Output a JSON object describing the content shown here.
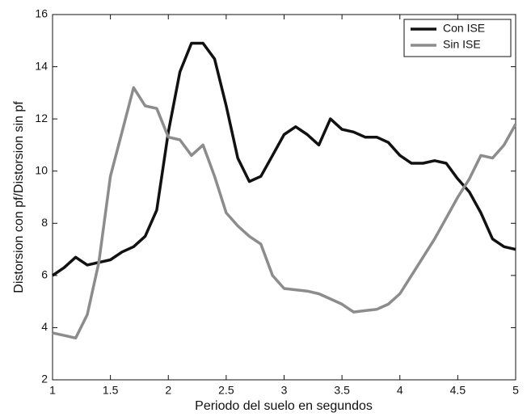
{
  "chart_data": {
    "type": "line",
    "xlabel": "Periodo del suelo en segundos",
    "ylabel": "Distorsion con pf/Distorsion sin pf",
    "x": [
      1.0,
      1.1,
      1.2,
      1.3,
      1.4,
      1.5,
      1.6,
      1.7,
      1.8,
      1.9,
      2.0,
      2.1,
      2.2,
      2.3,
      2.4,
      2.5,
      2.6,
      2.7,
      2.8,
      2.9,
      3.0,
      3.1,
      3.2,
      3.3,
      3.4,
      3.5,
      3.6,
      3.7,
      3.8,
      3.9,
      4.0,
      4.1,
      4.2,
      4.3,
      4.4,
      4.5,
      4.6,
      4.7,
      4.8,
      4.9,
      5.0
    ],
    "series": [
      {
        "name": "Con ISE",
        "color": "#111111",
        "values": [
          6.0,
          6.3,
          6.7,
          6.4,
          6.5,
          6.6,
          6.9,
          7.1,
          7.5,
          8.5,
          11.5,
          13.8,
          14.9,
          14.9,
          14.3,
          12.5,
          10.5,
          9.6,
          9.8,
          10.6,
          11.4,
          11.7,
          11.4,
          11.0,
          12.0,
          11.6,
          11.5,
          11.3,
          11.3,
          11.1,
          10.6,
          10.3,
          10.3,
          10.4,
          10.3,
          9.7,
          9.2,
          8.4,
          7.4,
          7.1,
          7.0
        ]
      },
      {
        "name": "Sin ISE",
        "color": "#8c8c8c",
        "values": [
          3.8,
          3.7,
          3.6,
          4.5,
          6.5,
          9.8,
          11.5,
          13.2,
          12.5,
          12.4,
          11.3,
          11.2,
          10.6,
          11.0,
          9.8,
          8.4,
          7.9,
          7.5,
          7.2,
          6.0,
          5.5,
          5.45,
          5.4,
          5.3,
          5.1,
          4.9,
          4.6,
          4.65,
          4.7,
          4.9,
          5.3,
          6.0,
          6.7,
          7.4,
          8.2,
          9.0,
          9.7,
          10.6,
          10.5,
          11.0,
          11.8
        ]
      }
    ],
    "xlim": [
      1,
      5
    ],
    "xticks": [
      1,
      1.5,
      2,
      2.5,
      3,
      3.5,
      4,
      4.5,
      5
    ],
    "ylim": [
      2,
      16
    ],
    "yticks": [
      2,
      4,
      6,
      8,
      10,
      12,
      14,
      16
    ],
    "legend": "upper right"
  }
}
